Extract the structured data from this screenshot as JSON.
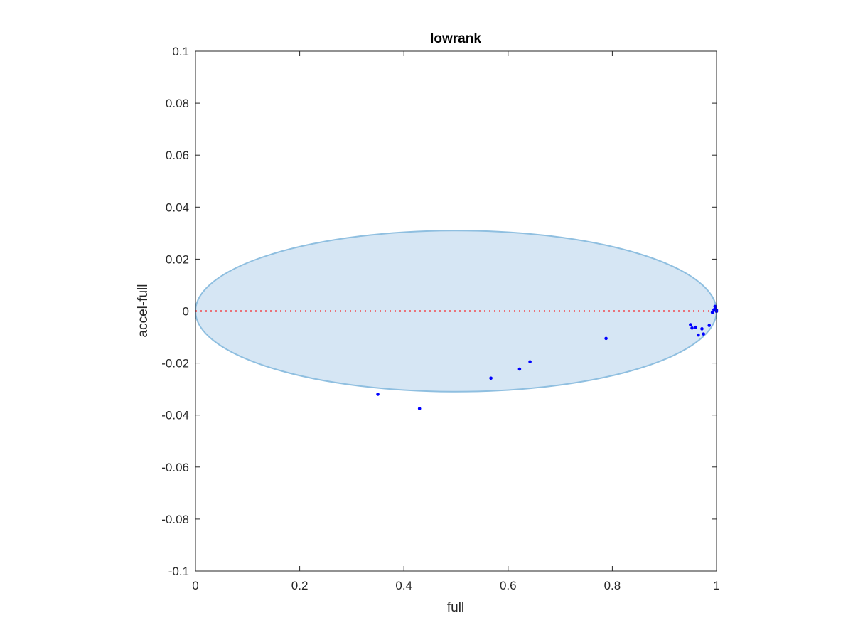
{
  "chart_data": {
    "type": "scatter",
    "title": "lowrank",
    "xlabel": "full",
    "ylabel": "accel-full",
    "xlim": [
      0,
      1
    ],
    "ylim": [
      -0.1,
      0.1
    ],
    "xticks": [
      0,
      0.2,
      0.4,
      0.6,
      0.8,
      1
    ],
    "xtick_labels": [
      "0",
      "0.2",
      "0.4",
      "0.6",
      "0.8",
      "1"
    ],
    "yticks": [
      0.1,
      0.08,
      0.06,
      0.04,
      0.02,
      0,
      -0.02,
      -0.04,
      -0.06,
      -0.08,
      -0.1
    ],
    "ytick_labels": [
      "0.1",
      "0.08",
      "0.06",
      "0.04",
      "0.02",
      "0",
      "-0.02",
      "-0.04",
      "-0.06",
      "-0.08",
      "-0.1"
    ],
    "grid": false,
    "region": {
      "shape": "ellipse",
      "x_range": [
        0,
        1
      ],
      "y_range": [
        -0.031,
        0.031
      ],
      "fill": "#d6e6f4",
      "stroke": "#8fbfe0"
    },
    "reference_line": {
      "y": 0,
      "style": "dotted",
      "color": "#ff0000"
    },
    "series": [
      {
        "color": "#0000ff",
        "points": [
          [
            0.35,
            -0.032
          ],
          [
            0.43,
            -0.0375
          ],
          [
            0.567,
            -0.0258
          ],
          [
            0.622,
            -0.0223
          ],
          [
            0.642,
            -0.0195
          ],
          [
            0.788,
            -0.0105
          ],
          [
            0.95,
            -0.0052
          ],
          [
            0.953,
            -0.0065
          ],
          [
            0.96,
            -0.0062
          ],
          [
            0.965,
            -0.0092
          ],
          [
            0.972,
            -0.0068
          ],
          [
            0.975,
            -0.0088
          ],
          [
            0.986,
            -0.0055
          ],
          [
            0.992,
            -0.0005
          ],
          [
            0.995,
            0.0005
          ],
          [
            0.997,
            0.0018
          ],
          [
            0.998,
            0.0012
          ],
          [
            0.999,
            0.0002
          ],
          [
            1.0,
            0.0004
          ],
          [
            1.0,
            -0.0001
          ]
        ]
      }
    ]
  }
}
